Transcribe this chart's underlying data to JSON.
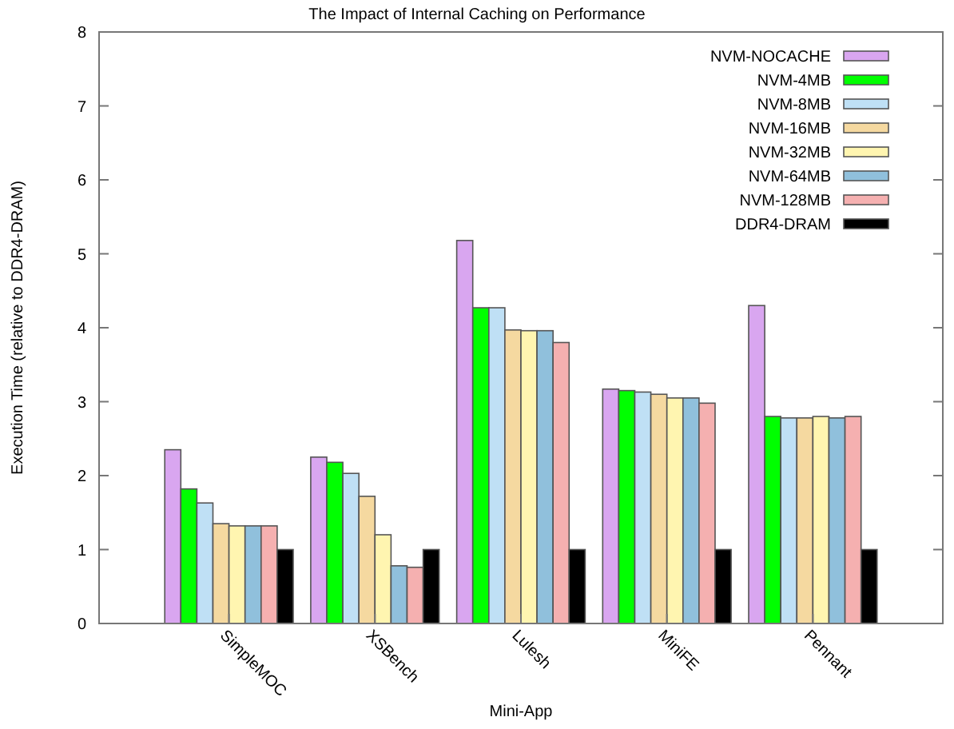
{
  "chart_data": {
    "type": "bar",
    "title": "The Impact of Internal Caching on Performance",
    "xlabel": "Mini-App",
    "ylabel": "Execution Time (relative to DDR4-DRAM)",
    "categories": [
      "SimpleMOC",
      "XSBench",
      "Lulesh",
      "MiniFE",
      "Pennant"
    ],
    "series": [
      {
        "name": "NVM-NOCACHE",
        "color": "#d9a6f0",
        "values": [
          2.35,
          2.25,
          5.18,
          3.17,
          4.3
        ]
      },
      {
        "name": "NVM-4MB",
        "color": "#00ff00",
        "values": [
          1.82,
          2.18,
          4.27,
          3.15,
          2.8
        ]
      },
      {
        "name": "NVM-8MB",
        "color": "#bfe0f5",
        "values": [
          1.63,
          2.03,
          4.27,
          3.13,
          2.78
        ]
      },
      {
        "name": "NVM-16MB",
        "color": "#f5d9a0",
        "values": [
          1.35,
          1.72,
          3.97,
          3.1,
          2.78
        ]
      },
      {
        "name": "NVM-32MB",
        "color": "#fff5b0",
        "values": [
          1.32,
          1.2,
          3.96,
          3.05,
          2.8
        ]
      },
      {
        "name": "NVM-64MB",
        "color": "#90c0dc",
        "values": [
          1.32,
          0.78,
          3.96,
          3.05,
          2.78
        ]
      },
      {
        "name": "NVM-128MB",
        "color": "#f5b0b0",
        "values": [
          1.32,
          0.76,
          3.8,
          2.98,
          2.8
        ]
      },
      {
        "name": "DDR4-DRAM",
        "color": "#000000",
        "values": [
          1,
          1,
          1,
          1,
          1
        ]
      }
    ],
    "ylim": [
      0,
      8
    ],
    "yticks": [
      0,
      1,
      2,
      3,
      4,
      5,
      6,
      7,
      8
    ],
    "grid": false,
    "legend": "top right"
  }
}
